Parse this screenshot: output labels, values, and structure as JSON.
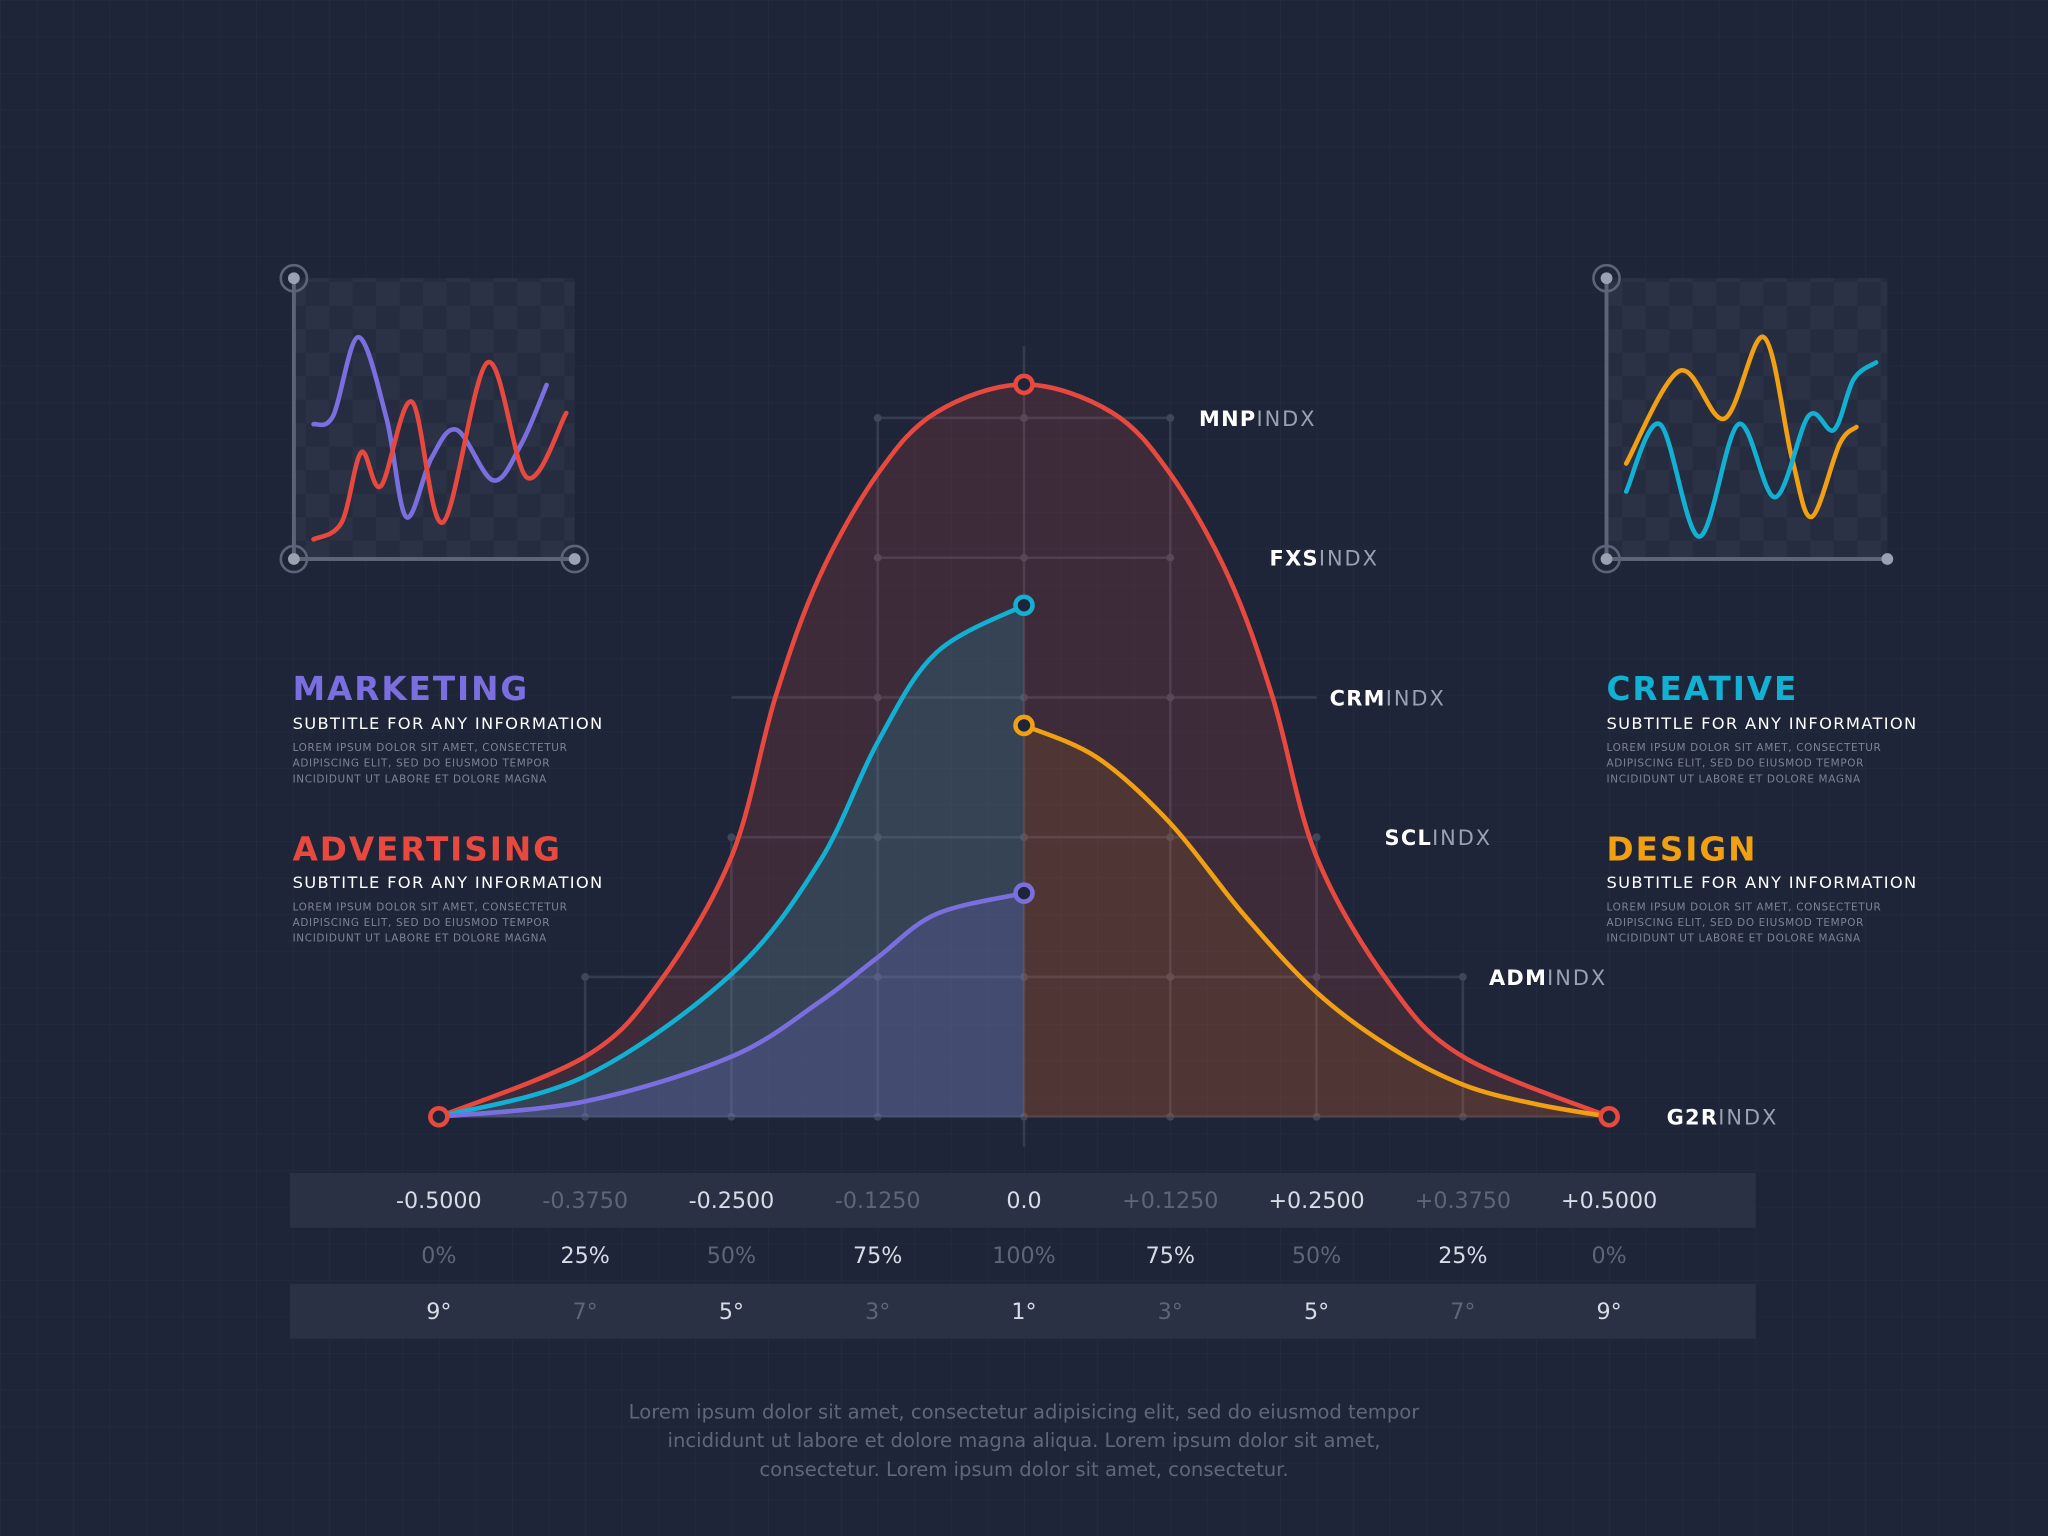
{
  "colors": {
    "background": "#1e2538",
    "red": "#e8493f",
    "cyan": "#12b0d2",
    "purple": "#7b6fe0",
    "orange": "#f0a012",
    "table_band": "#2a3145",
    "text_bright": "#d8dce6",
    "text_dim": "#5d6578"
  },
  "sections": [
    {
      "title": "MARKETING",
      "color": "#7b6fe0",
      "subtitle": "SUBTITLE FOR ANY INFORMATION",
      "body": [
        "LOREM IPSUM DOLOR SIT AMET, CONSECTETUR",
        "ADIPISCING ELIT, SED DO EIUSMOD TEMPOR",
        "INCIDIDUNT UT LABORE ET DOLORE MAGNA"
      ]
    },
    {
      "title": "ADVERTISING",
      "color": "#e8493f",
      "subtitle": "SUBTITLE FOR ANY INFORMATION",
      "body": [
        "LOREM IPSUM DOLOR SIT AMET, CONSECTETUR",
        "ADIPISCING ELIT, SED DO EIUSMOD TEMPOR",
        "INCIDIDUNT UT LABORE ET DOLORE MAGNA"
      ]
    },
    {
      "title": "CREATIVE",
      "color": "#12b0d2",
      "subtitle": "SUBTITLE FOR ANY INFORMATION",
      "body": [
        "LOREM IPSUM DOLOR SIT AMET, CONSECTETUR",
        "ADIPISCING ELIT, SED DO EIUSMOD TEMPOR",
        "INCIDIDUNT UT LABORE ET DOLORE MAGNA"
      ]
    },
    {
      "title": "DESIGN",
      "color": "#f0a012",
      "subtitle": "SUBTITLE FOR ANY INFORMATION",
      "body": [
        "LOREM IPSUM DOLOR SIT AMET, CONSECTETUR",
        "ADIPISCING ELIT, SED DO EIUSMOD TEMPOR",
        "INCIDIDUNT UT LABORE ET DOLORE MAGNA"
      ]
    }
  ],
  "footer": [
    "Lorem ipsum dolor sit amet, consectetur adipisicing elit, sed do eiusmod tempor",
    "incididunt ut labore et dolore magna aliqua. Lorem ipsum dolor sit amet,",
    "consectetur. Lorem ipsum dolor sit amet, consectetur."
  ],
  "table": {
    "rows": [
      {
        "cells": [
          "-0.5000",
          "-0.3750",
          "-0.2500",
          "-0.1250",
          "0.0",
          "+0.1250",
          "+0.2500",
          "+0.3750",
          "+0.5000"
        ],
        "bright": [
          true,
          false,
          true,
          false,
          true,
          false,
          true,
          false,
          true
        ],
        "band": true
      },
      {
        "cells": [
          "0%",
          "25%",
          "50%",
          "75%",
          "100%",
          "75%",
          "50%",
          "25%",
          "0%"
        ],
        "bright": [
          false,
          true,
          false,
          true,
          false,
          true,
          false,
          true,
          false
        ],
        "band": false
      },
      {
        "cells": [
          "9°",
          "7°",
          "5°",
          "3°",
          "1°",
          "3°",
          "5°",
          "7°",
          "9°"
        ],
        "bright": [
          true,
          false,
          true,
          false,
          true,
          false,
          true,
          false,
          true
        ],
        "band": true
      }
    ]
  },
  "chart_data": [
    {
      "type": "area",
      "x_ticks": [
        -0.5,
        -0.375,
        -0.25,
        -0.125,
        0,
        0.125,
        0.25,
        0.375,
        0.5
      ],
      "xlim": [
        -0.5,
        0.5
      ],
      "y_levels": [
        {
          "value": 0,
          "bold": "G2R",
          "light": "INDX"
        },
        {
          "value": 1,
          "bold": "ADM",
          "light": "INDX"
        },
        {
          "value": 2,
          "bold": "SCL",
          "light": "INDX"
        },
        {
          "value": 3,
          "bold": "CRM",
          "light": "INDX"
        },
        {
          "value": 4,
          "bold": "FXS",
          "light": "INDX"
        },
        {
          "value": 5,
          "bold": "MNP",
          "light": "INDX"
        }
      ],
      "grid": true,
      "series": [
        {
          "color": "#e8493f",
          "x": [
            -0.5,
            -0.375,
            -0.3125,
            -0.25,
            -0.2125,
            -0.175,
            -0.125,
            -0.075,
            0,
            0.075,
            0.125,
            0.175,
            0.2125,
            0.25,
            0.3125,
            0.375,
            0.5
          ],
          "y": [
            0,
            0.43,
            0.95,
            1.86,
            3.0,
            3.86,
            4.6,
            5.04,
            5.24,
            5.04,
            4.6,
            3.86,
            3.0,
            1.86,
            0.95,
            0.43,
            0
          ],
          "markers": [
            0,
            8,
            16
          ]
        },
        {
          "color": "#12b0d2",
          "x": [
            -0.5,
            -0.375,
            -0.25,
            -0.175,
            -0.125,
            -0.075,
            0
          ],
          "y": [
            0,
            0.29,
            1.02,
            1.82,
            2.68,
            3.32,
            3.66
          ],
          "markers": [
            6
          ]
        },
        {
          "color": "#7b6fe0",
          "x": [
            -0.5,
            -0.375,
            -0.25,
            -0.175,
            -0.125,
            -0.075,
            0
          ],
          "y": [
            0,
            0.11,
            0.43,
            0.82,
            1.14,
            1.45,
            1.6
          ],
          "markers": [
            6
          ]
        },
        {
          "color": "#f0a012",
          "x": [
            0,
            0.0625,
            0.125,
            0.1875,
            0.25,
            0.3125,
            0.375,
            0.4375,
            0.5
          ],
          "y": [
            2.8,
            2.57,
            2.1,
            1.45,
            0.89,
            0.5,
            0.23,
            0.09,
            0
          ],
          "markers": [
            0
          ]
        }
      ]
    },
    {
      "type": "line",
      "position": "top-left",
      "xlim": [
        0,
        100
      ],
      "ylim": [
        0,
        100
      ],
      "series": [
        {
          "color": "#7b6fe0",
          "points": [
            [
              7,
              48
            ],
            [
              14,
              51
            ],
            [
              23,
              79
            ],
            [
              33,
              50
            ],
            [
              40,
              15
            ],
            [
              49,
              36
            ],
            [
              58,
              46
            ],
            [
              71,
              28
            ],
            [
              81,
              41
            ],
            [
              90,
              62
            ]
          ]
        },
        {
          "color": "#e8493f",
          "points": [
            [
              7,
              7
            ],
            [
              17,
              13
            ],
            [
              24,
              38
            ],
            [
              31,
              26
            ],
            [
              42,
              56
            ],
            [
              53,
              13
            ],
            [
              69,
              70
            ],
            [
              83,
              29
            ],
            [
              97,
              52
            ]
          ]
        }
      ]
    },
    {
      "type": "line",
      "position": "top-right",
      "xlim": [
        0,
        100
      ],
      "ylim": [
        0,
        100
      ],
      "series": [
        {
          "color": "#f0a012",
          "points": [
            [
              7,
              34
            ],
            [
              26,
              67
            ],
            [
              42,
              50
            ],
            [
              56,
              79
            ],
            [
              66,
              36
            ],
            [
              73,
              15
            ],
            [
              83,
              41
            ],
            [
              89,
              47
            ]
          ]
        },
        {
          "color": "#12b0d2",
          "points": [
            [
              7,
              24
            ],
            [
              19,
              48
            ],
            [
              33,
              8
            ],
            [
              47,
              48
            ],
            [
              60,
              22
            ],
            [
              72,
              51
            ],
            [
              81,
              46
            ],
            [
              88,
              64
            ],
            [
              96,
              70
            ]
          ]
        }
      ]
    }
  ]
}
